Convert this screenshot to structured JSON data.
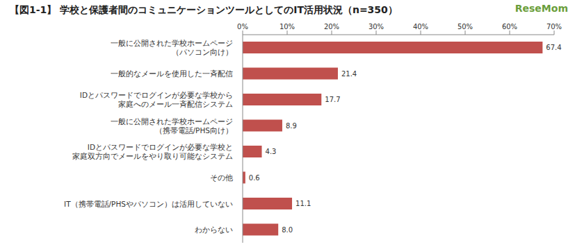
{
  "chart_data": {
    "type": "bar",
    "title": "【図1-1】 学校と保護者間のコミュニケーションツールとしてのIT活用状況（n=350）",
    "annotations": [
      "ReseMom"
    ],
    "orientation": "horizontal",
    "categories": [
      "一般に公開された学校ホームページ\n（パソコン向け）",
      "一般的なメールを使用した一斉配信",
      "IDとパスワードでログインが必要な学校から\n家庭へのメール一斉配信システム",
      "一般に公開された学校ホームページ\n（携帯電話/PHS向け）",
      "IDとパスワードでログインが必要な学校と\n家庭双方向でメールをやり取り可能なシステム",
      "その他",
      "IT（携帯電話/PHSやパソコン）は活用していない",
      "わからない"
    ],
    "values": [
      67.4,
      21.4,
      17.7,
      8.9,
      4.3,
      0.6,
      11.1,
      8.0
    ],
    "value_labels": [
      "67.4",
      "21.4",
      "17.7",
      "8.9",
      "4.3",
      "0.6",
      "11.1",
      "8.0"
    ],
    "data_labels": true,
    "color": "#C0504D",
    "xlim": [
      0,
      70
    ],
    "xticks": [
      {
        "value": 0,
        "label": "0%"
      },
      {
        "value": 10,
        "label": "10%"
      },
      {
        "value": 20,
        "label": "20%"
      },
      {
        "value": 30,
        "label": "30%"
      },
      {
        "value": 40,
        "label": "40%"
      },
      {
        "value": 50,
        "label": "50%"
      },
      {
        "value": 60,
        "label": "60%"
      },
      {
        "value": 70,
        "label": "70%"
      }
    ],
    "grid": false
  }
}
